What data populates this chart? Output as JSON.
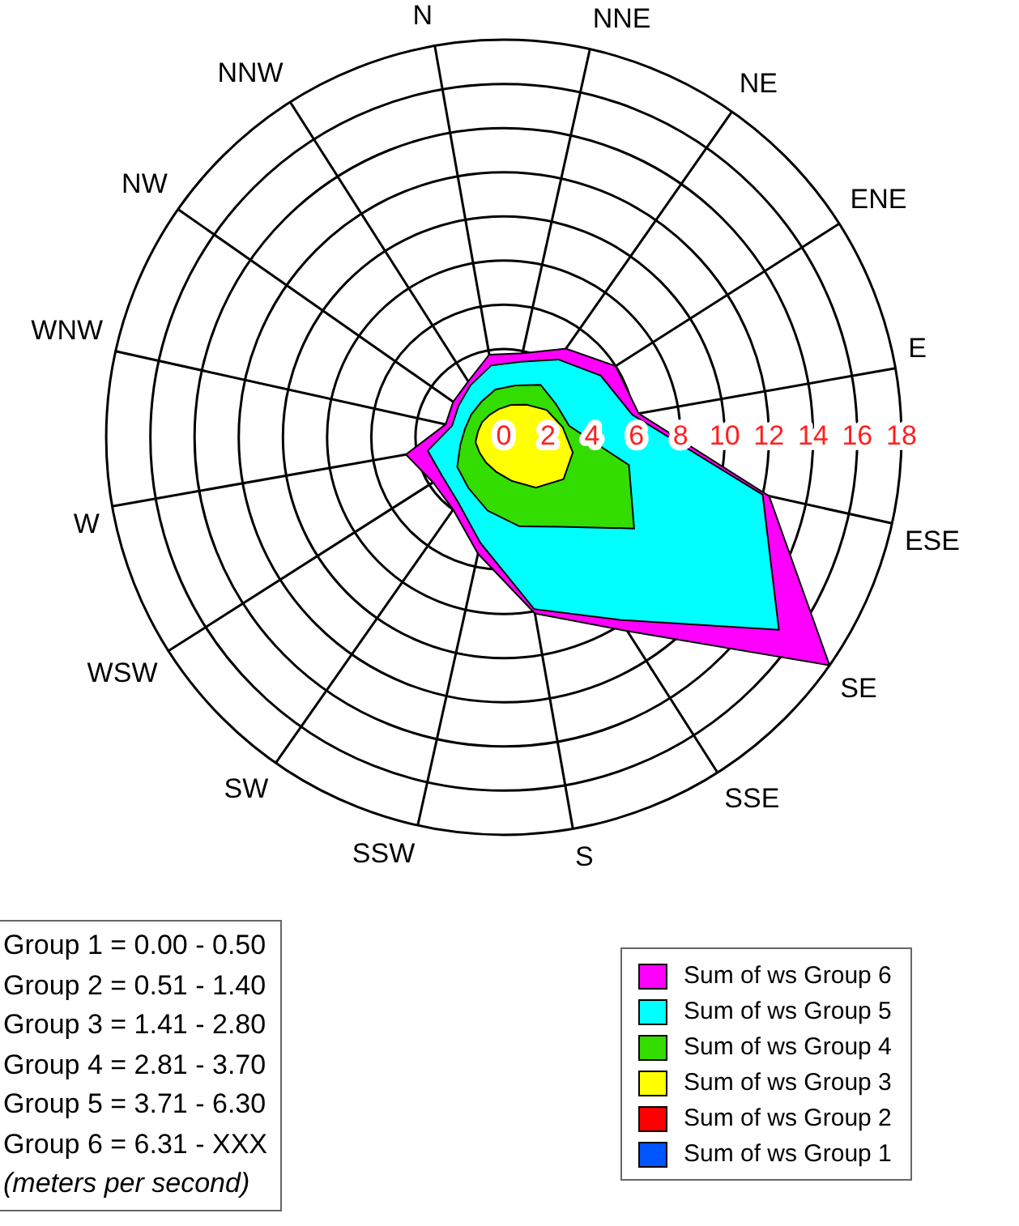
{
  "chart_data": {
    "type": "radar",
    "categories": [
      "N",
      "NNE",
      "NE",
      "ENE",
      "E",
      "ESE",
      "SE",
      "SSE",
      "S",
      "SSW",
      "SW",
      "WSW",
      "W",
      "WNW",
      "NW",
      "NNW"
    ],
    "series": [
      {
        "name": "Sum of ws  Group 6",
        "color": "#ff00ff",
        "values": [
          3.8,
          3.9,
          4.9,
          6.0,
          6.2,
          12.3,
          18,
          10.4,
          8.1,
          5.4,
          4.0,
          3.8,
          4.5,
          2.7,
          2.8,
          3.0
        ]
      },
      {
        "name": "Sum of ws  Group 5",
        "color": "#00ffff",
        "values": [
          3.3,
          3.5,
          4.3,
          5.2,
          5.9,
          12.0,
          15.2,
          9.8,
          7.9,
          4.9,
          3.6,
          3.3,
          3.5,
          2.4,
          2.5,
          2.8
        ]
      },
      {
        "name": "Sum of ws  Group 4",
        "color": "#33dd00",
        "values": [
          2.2,
          2.4,
          2.9,
          2.8,
          3.0,
          5.8,
          7.2,
          4.8,
          4.1,
          3.4,
          2.8,
          2.5,
          2.0,
          1.8,
          1.8,
          1.9
        ]
      },
      {
        "name": "Sum of ws  Group 3",
        "color": "#ffff00",
        "values": [
          1.3,
          1.5,
          1.8,
          2.3,
          2.7,
          3.2,
          3.3,
          2.7,
          2.0,
          1.6,
          1.4,
          1.3,
          1.3,
          1.2,
          1.2,
          1.2
        ]
      },
      {
        "name": "Sum of ws  Group 2",
        "color": "#ff0000",
        "values": [
          null,
          null,
          null,
          null,
          null,
          null,
          null,
          null,
          null,
          null,
          null,
          null,
          null,
          null,
          null,
          null
        ]
      },
      {
        "name": "Sum of ws  Group 1",
        "color": "#0055ff",
        "values": [
          null,
          null,
          null,
          null,
          null,
          null,
          null,
          null,
          null,
          null,
          null,
          null,
          null,
          null,
          null,
          null
        ]
      }
    ],
    "ylim": [
      0,
      18
    ],
    "yticks": [
      0,
      2,
      4,
      6,
      8,
      10,
      12,
      14,
      16,
      18
    ],
    "grid": true,
    "legend": "bottom right",
    "marker": "none",
    "annotations": [
      "Group 1 = 0.00 - 0.50",
      "Group 2 = 0.51 - 1.40",
      "Group 3 = 1.41 - 2.80",
      "Group 4 = 2.81 - 3.70",
      "Group 5 = 3.71 - 6.30",
      "Group 6 = 6.31 - XXX",
      "(meters per second)"
    ]
  }
}
